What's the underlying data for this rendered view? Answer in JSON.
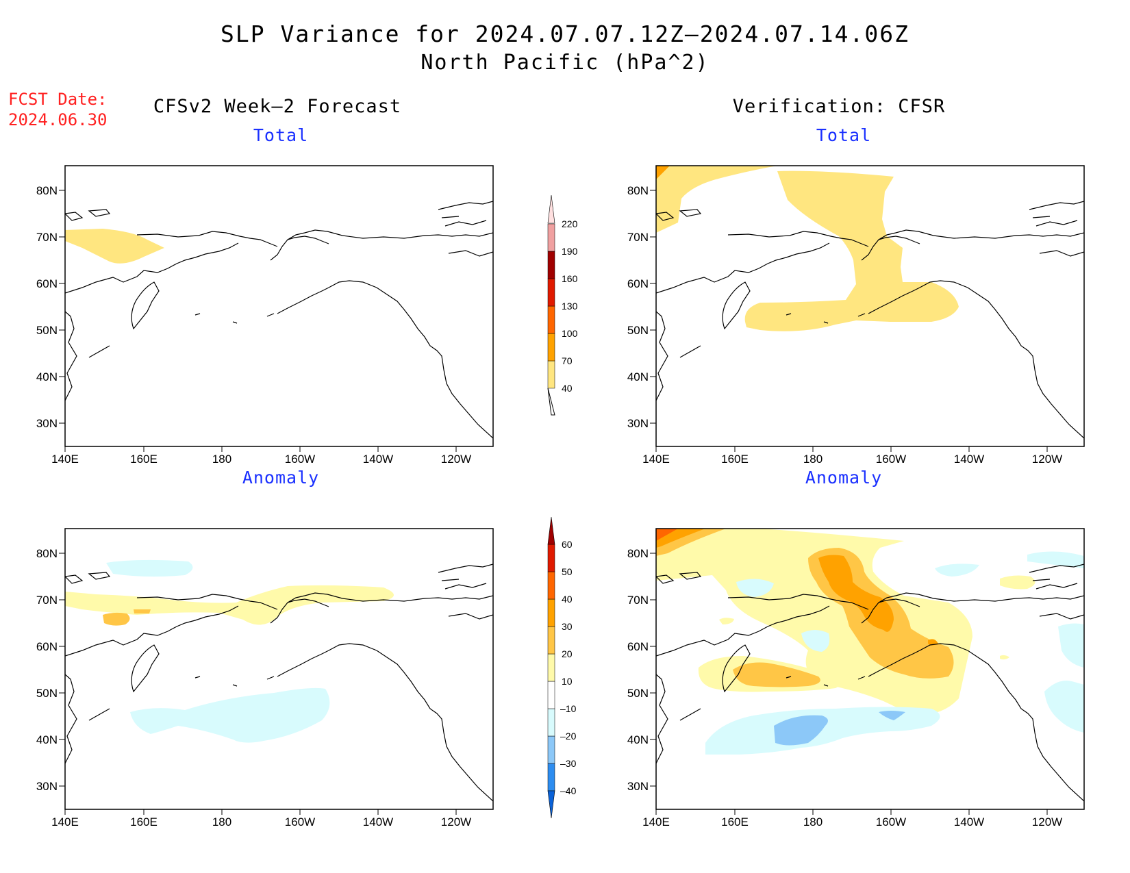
{
  "title": {
    "line1": "SLP Variance for 2024.07.07.12Z—2024.07.14.06Z",
    "line2": "North Pacific (hPa^2)"
  },
  "fcst": {
    "label": "FCST Date:",
    "date": "2024.06.30"
  },
  "columns": {
    "left": "CFSv2 Week—2 Forecast",
    "right": "Verification: CFSR"
  },
  "panel_titles": {
    "top_left": "Total",
    "top_right": "Total",
    "bottom_left": "Anomaly",
    "bottom_right": "Anomaly"
  },
  "axes": {
    "lat_labels": [
      "80N",
      "70N",
      "60N",
      "50N",
      "40N",
      "30N"
    ],
    "lat_values": [
      80,
      70,
      60,
      50,
      40,
      30
    ],
    "lon_labels": [
      "140E",
      "160E",
      "180",
      "160W",
      "140W",
      "120W"
    ],
    "lon_values": [
      140,
      160,
      180,
      200,
      220,
      240
    ],
    "lat_range": [
      25,
      85
    ],
    "lon_range": [
      140,
      250
    ]
  },
  "colorbars": {
    "total": {
      "levels": [
        "40",
        "70",
        "100",
        "130",
        "160",
        "190",
        "220"
      ],
      "colors": [
        "#ffe680",
        "#ffa200",
        "#ff6600",
        "#e01a00",
        "#a00000",
        "#f0a0a0",
        "#ffe0e0"
      ]
    },
    "anomaly": {
      "levels": [
        "–40",
        "–30",
        "–20",
        "–10",
        "10",
        "20",
        "30",
        "40",
        "50",
        "60"
      ],
      "colors": [
        "#0a62d8",
        "#2d8df0",
        "#8cc8f8",
        "#d8fbfd",
        "#ffffff",
        "#fffaaa",
        "#ffc646",
        "#ffa200",
        "#ff6600",
        "#e01a00",
        "#a00000"
      ]
    }
  },
  "palette": {
    "yellow": "#ffe680",
    "light_yellow": "#fffaaa",
    "orange_light": "#ffc646",
    "orange": "#ffa200",
    "dark_orange": "#ff6600",
    "light_cyan": "#d8fbfd",
    "light_blue": "#8cc8f8",
    "coast": "#000000"
  }
}
